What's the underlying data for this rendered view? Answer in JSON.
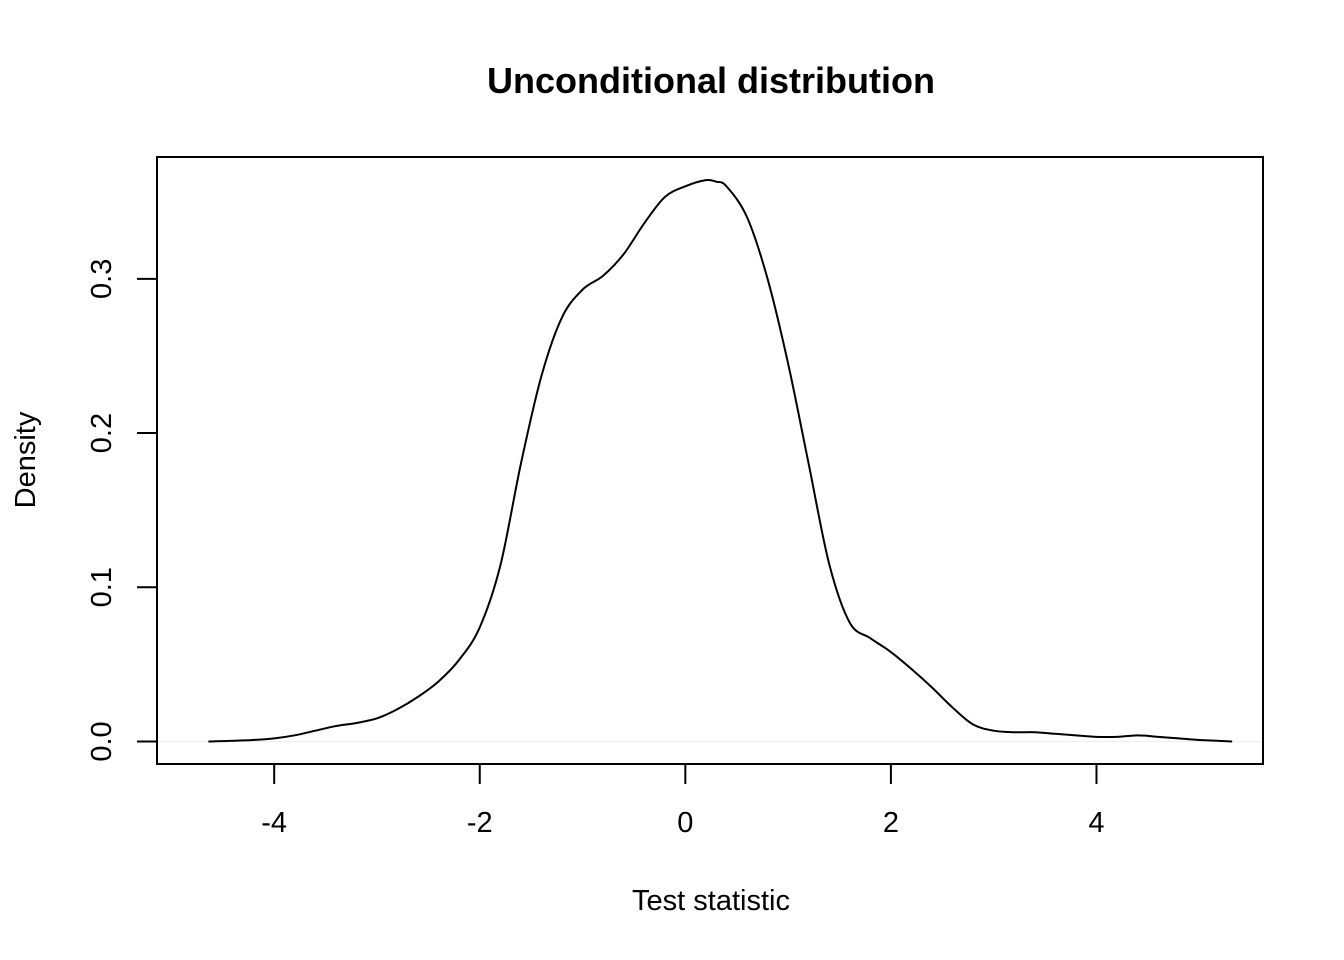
{
  "chart_data": {
    "type": "line",
    "title": "Unconditional distribution",
    "xlabel": "Test statistic",
    "ylabel": "Density",
    "xlim": [
      -5.14,
      5.62
    ],
    "ylim": [
      -0.0146,
      0.379
    ],
    "x_ticks": [
      -4,
      -2,
      0,
      2,
      4
    ],
    "x_tick_labels": [
      "-4",
      "-2",
      "0",
      "2",
      "4"
    ],
    "y_ticks": [
      0.0,
      0.1,
      0.2,
      0.3
    ],
    "y_tick_labels": [
      "0.0",
      "0.1",
      "0.2",
      "0.3"
    ],
    "grid": false,
    "legend": "none",
    "colors": {
      "line": "#000000",
      "frame": "#000000",
      "baseline": "#eeeeee"
    },
    "series": [
      {
        "x": [
          -4.64,
          -4.2,
          -4.0,
          -3.8,
          -3.6,
          -3.4,
          -3.2,
          -3.0,
          -2.8,
          -2.6,
          -2.4,
          -2.2,
          -2.0,
          -1.8,
          -1.6,
          -1.4,
          -1.2,
          -1.0,
          -0.8,
          -0.6,
          -0.4,
          -0.2,
          0.0,
          0.2,
          0.3,
          0.4,
          0.6,
          0.8,
          1.0,
          1.2,
          1.4,
          1.6,
          1.8,
          2.0,
          2.2,
          2.4,
          2.6,
          2.8,
          3.0,
          3.2,
          3.4,
          3.6,
          3.8,
          4.0,
          4.2,
          4.4,
          4.6,
          4.8,
          5.0,
          5.32
        ],
        "y": [
          0.0,
          0.001,
          0.002,
          0.004,
          0.007,
          0.01,
          0.012,
          0.015,
          0.021,
          0.029,
          0.039,
          0.053,
          0.074,
          0.114,
          0.18,
          0.237,
          0.275,
          0.293,
          0.302,
          0.316,
          0.336,
          0.353,
          0.36,
          0.364,
          0.363,
          0.36,
          0.34,
          0.3,
          0.245,
          0.18,
          0.115,
          0.077,
          0.067,
          0.058,
          0.047,
          0.035,
          0.022,
          0.011,
          0.007,
          0.006,
          0.006,
          0.005,
          0.004,
          0.003,
          0.003,
          0.004,
          0.003,
          0.002,
          0.001,
          0.0
        ]
      }
    ]
  }
}
